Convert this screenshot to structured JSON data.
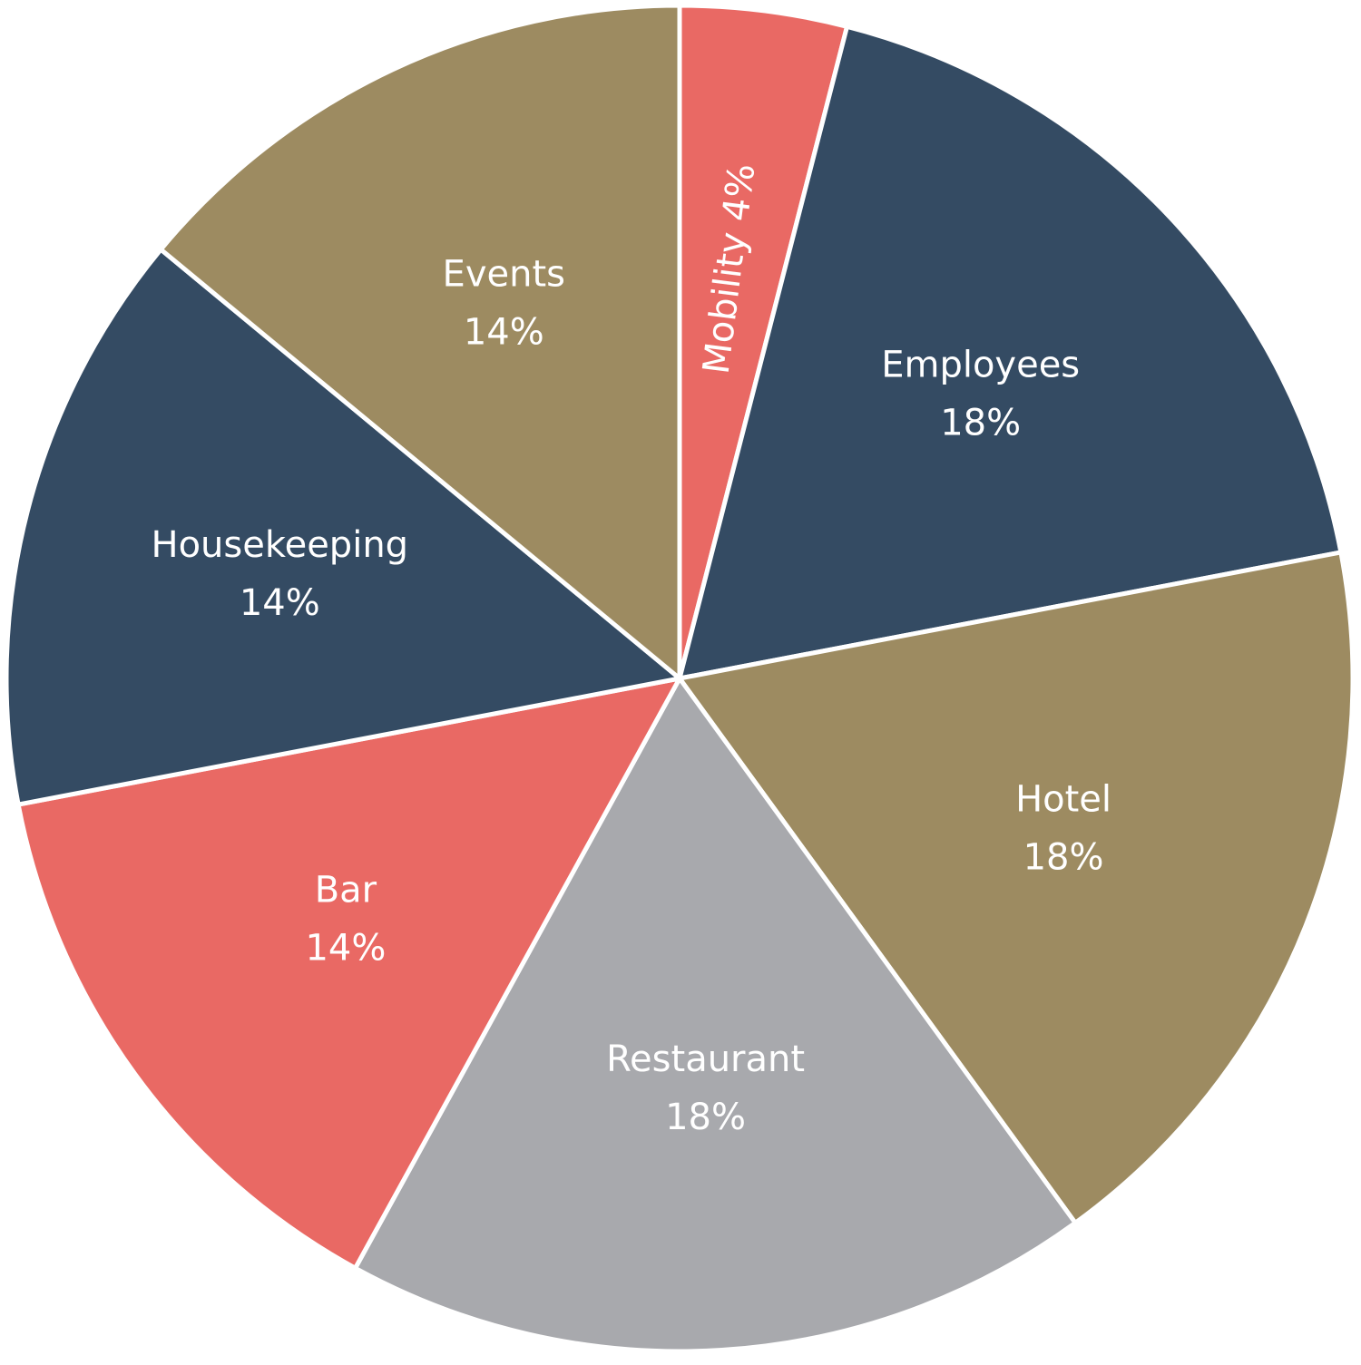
{
  "chart_data": {
    "type": "pie",
    "categories": [
      "Mobility",
      "Employees",
      "Hotel",
      "Restaurant",
      "Bar",
      "Housekeeping",
      "Events"
    ],
    "values": [
      4,
      18,
      18,
      18,
      14,
      14,
      14
    ],
    "value_labels": [
      "4%",
      "18%",
      "18%",
      "18%",
      "14%",
      "14%",
      "14%"
    ],
    "colors": [
      "#e96964",
      "#344b63",
      "#9d8b61",
      "#a8a9ad",
      "#e96964",
      "#344b63",
      "#9d8b61"
    ]
  }
}
